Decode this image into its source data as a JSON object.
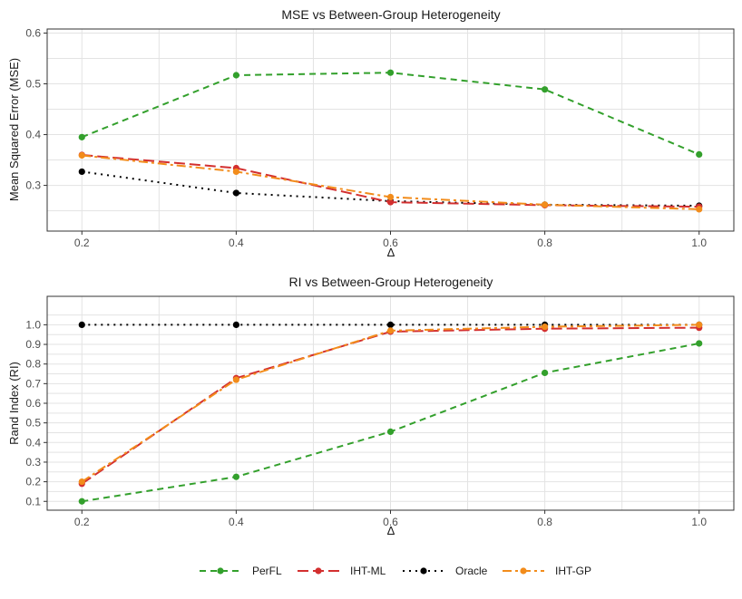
{
  "chart_data": [
    {
      "type": "line",
      "title": "MSE vs Between-Group Heterogeneity",
      "xlabel": "Δ",
      "ylabel": "Mean Squared Error (MSE)",
      "x": [
        0.2,
        0.4,
        0.6,
        0.8,
        1.0
      ],
      "xlim": [
        0.155,
        1.045
      ],
      "ylim": [
        0.21,
        0.608
      ],
      "xticks": [
        "0.2",
        "0.4",
        "0.6",
        "0.8",
        "1.0"
      ],
      "xtick_values": [
        0.2,
        0.4,
        0.6,
        0.8,
        1.0
      ],
      "yticks": [
        "0.3",
        "0.4",
        "0.5",
        "0.6"
      ],
      "ytick_values": [
        0.3,
        0.4,
        0.5,
        0.6
      ],
      "grid": true,
      "series": [
        {
          "name": "PerFL",
          "values": [
            0.395,
            0.517,
            0.522,
            0.489,
            0.361
          ]
        },
        {
          "name": "IHT-ML",
          "values": [
            0.36,
            0.334,
            0.267,
            0.261,
            0.258
          ]
        },
        {
          "name": "Oracle",
          "values": [
            0.327,
            0.285,
            0.269,
            0.262,
            0.26
          ]
        },
        {
          "name": "IHT-GP",
          "values": [
            0.359,
            0.327,
            0.277,
            0.262,
            0.253
          ]
        }
      ]
    },
    {
      "type": "line",
      "title": "RI vs Between-Group Heterogeneity",
      "xlabel": "Δ",
      "ylabel": "Rand Index (RI)",
      "x": [
        0.2,
        0.4,
        0.6,
        0.8,
        1.0
      ],
      "xlim": [
        0.155,
        1.045
      ],
      "ylim": [
        0.055,
        1.145
      ],
      "xticks": [
        "0.2",
        "0.4",
        "0.6",
        "0.8",
        "1.0"
      ],
      "xtick_values": [
        0.2,
        0.4,
        0.6,
        0.8,
        1.0
      ],
      "yticks": [
        "0.1",
        "0.2",
        "0.3",
        "0.4",
        "0.5",
        "0.6",
        "0.7",
        "0.8",
        "0.9",
        "1.0"
      ],
      "ytick_values": [
        0.1,
        0.2,
        0.3,
        0.4,
        0.5,
        0.6,
        0.7,
        0.8,
        0.9,
        1.0
      ],
      "grid": true,
      "series": [
        {
          "name": "PerFL",
          "values": [
            0.1,
            0.225,
            0.455,
            0.755,
            0.905
          ]
        },
        {
          "name": "IHT-ML",
          "values": [
            0.19,
            0.728,
            0.965,
            0.98,
            0.985
          ]
        },
        {
          "name": "Oracle",
          "values": [
            1.0,
            1.0,
            1.0,
            1.0,
            1.0
          ]
        },
        {
          "name": "IHT-GP",
          "values": [
            0.2,
            0.72,
            0.97,
            0.99,
            1.0
          ]
        }
      ]
    }
  ],
  "legend": {
    "position": "bottom",
    "items": [
      {
        "name": "PerFL",
        "color": "#33a02c",
        "dash": "dashed"
      },
      {
        "name": "IHT-ML",
        "color": "#d32f2f",
        "dash": "longdash"
      },
      {
        "name": "Oracle",
        "color": "#000000",
        "dash": "dotted"
      },
      {
        "name": "IHT-GP",
        "color": "#f28c1b",
        "dash": "twodash"
      }
    ]
  }
}
